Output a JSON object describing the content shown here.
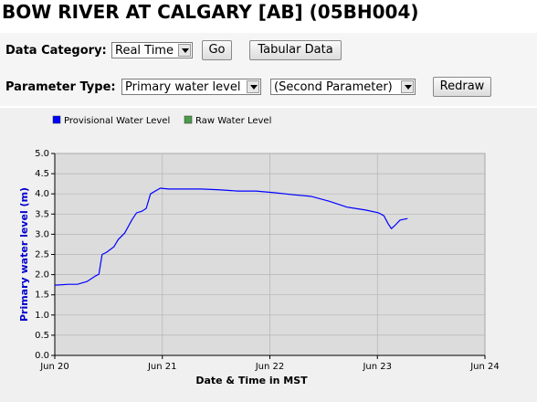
{
  "header": {
    "title": "BOW RIVER AT CALGARY [AB] (05BH004)"
  },
  "form": {
    "data_category": {
      "label": "Data Category:",
      "selected": "Real Time"
    },
    "go": "Go",
    "tabular": "Tabular Data",
    "parameter_type": {
      "label": "Parameter Type:",
      "selected": "Primary water level"
    },
    "second_parameter": "(Second Parameter)",
    "redraw": "Redraw"
  },
  "chart_data": {
    "type": "line",
    "x_label": "Date & Time in MST",
    "y_label": "Primary water level (m)",
    "legend_items": [
      {
        "label": "Provisional Water Level",
        "color": "#0000ff"
      },
      {
        "label": "Raw Water Level",
        "color": "#4c9a4c"
      }
    ],
    "series": [
      {
        "color": "#0000ff",
        "x": [
          0,
          0.13,
          0.21,
          0.3,
          0.38,
          0.41,
          0.44,
          0.48,
          0.55,
          0.59,
          0.65,
          0.72,
          0.76,
          0.81,
          0.85,
          0.89,
          0.98,
          1.06,
          1.19,
          1.36,
          1.53,
          1.7,
          1.87,
          2.04,
          2.21,
          2.38,
          2.55,
          2.72,
          2.89,
          3.01,
          3.06,
          3.1,
          3.13,
          3.16,
          3.21,
          3.28
        ],
        "values": [
          1.74,
          1.76,
          1.76,
          1.83,
          1.97,
          2.01,
          2.5,
          2.55,
          2.69,
          2.87,
          3.03,
          3.37,
          3.53,
          3.57,
          3.64,
          4.0,
          4.14,
          4.12,
          4.12,
          4.12,
          4.1,
          4.07,
          4.07,
          4.03,
          3.98,
          3.94,
          3.82,
          3.67,
          3.6,
          3.53,
          3.46,
          3.26,
          3.14,
          3.21,
          3.35,
          3.39
        ]
      }
    ],
    "xlim": [
      0,
      4
    ],
    "xticks": [
      {
        "value": 0,
        "label": "Jun 20"
      },
      {
        "value": 1,
        "label": "Jun 21"
      },
      {
        "value": 2,
        "label": "Jun 22"
      },
      {
        "value": 3,
        "label": "Jun 23"
      },
      {
        "value": 4,
        "label": "Jun 24"
      }
    ],
    "ylim": [
      0,
      5
    ],
    "yticks": [
      {
        "value": 0,
        "label": "0.0"
      },
      {
        "value": 0.5,
        "label": "0.5"
      },
      {
        "value": 1,
        "label": "1.0"
      },
      {
        "value": 1.5,
        "label": "1.5"
      },
      {
        "value": 2,
        "label": "2.0"
      },
      {
        "value": 2.5,
        "label": "2.5"
      },
      {
        "value": 3,
        "label": "3.0"
      },
      {
        "value": 3.5,
        "label": "3.5"
      },
      {
        "value": 4,
        "label": "4.0"
      },
      {
        "value": 4.5,
        "label": "4.5"
      },
      {
        "value": 5,
        "label": "5.0"
      }
    ],
    "grid": true
  }
}
